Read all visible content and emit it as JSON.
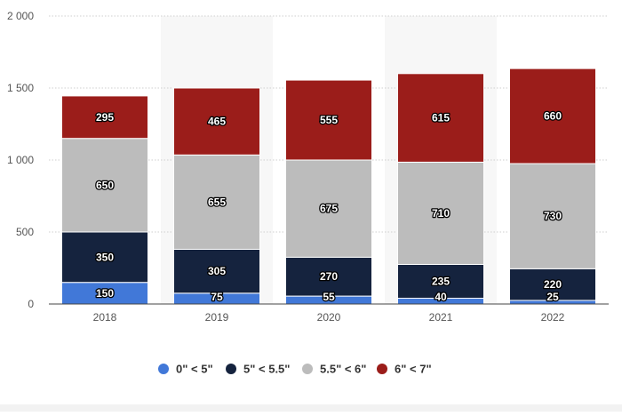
{
  "chart_data": {
    "type": "bar",
    "stacked": true,
    "title": "",
    "xlabel": "",
    "ylabel": "",
    "categories": [
      "2018",
      "2019",
      "2020",
      "2021",
      "2022"
    ],
    "ylim": [
      0,
      2000
    ],
    "y_ticks": [
      0,
      500,
      1000,
      1500,
      2000
    ],
    "y_tick_labels": [
      "0",
      "500",
      "1 000",
      "1 500",
      "2 000"
    ],
    "grid": true,
    "legend_position": "bottom-center",
    "series": [
      {
        "name": "0\" < 5\"",
        "color": "#4178d8",
        "values": [
          150,
          75,
          55,
          40,
          25
        ]
      },
      {
        "name": "5\" < 5.5\"",
        "color": "#15233e",
        "values": [
          350,
          305,
          270,
          235,
          220
        ]
      },
      {
        "name": "5.5\" < 6\"",
        "color": "#bcbcbc",
        "values": [
          650,
          655,
          675,
          710,
          730
        ]
      },
      {
        "name": "6\" < 7\"",
        "color": "#9b1d1a",
        "values": [
          295,
          465,
          555,
          615,
          660
        ]
      }
    ]
  }
}
